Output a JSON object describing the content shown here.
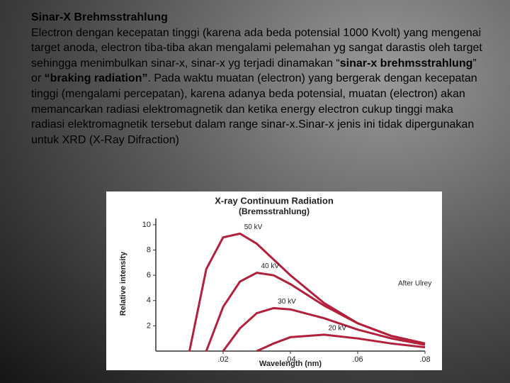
{
  "slide": {
    "title": "Sinar-X Brehmsstrahlung",
    "body": [
      {
        "text": "Electron dengan kecepatan tinggi (karena ada beda potensial 1000 Kvolt) yang mengenai target anoda, electron tiba-tiba akan mengalami pelemahan yg sangat darastis oleh target sehingga menimbulkan sinar-x, sinar-x yg terjadi dinamakan “",
        "bold": false
      },
      {
        "text": "sinar-x brehmsstrahlung",
        "bold": true
      },
      {
        "text": "” or ",
        "bold": false
      },
      {
        "text": "“braking radiation”",
        "bold": true
      },
      {
        "text": ". Pada waktu muatan (electron) yang bergerak dengan kecepatan tinggi (mengalami percepatan), karena adanya beda potensial, muatan (electron) akan memancarkan radiasi elektromagnetik dan ketika energy electron cukup tinggi maka radiasi elektromagnetik tersebut dalam range sinar-x.Sinar-x jenis ini tidak dipergunakan untuk XRD (X-Ray Difraction)",
        "bold": false
      }
    ]
  },
  "chart_data": {
    "type": "line",
    "title": "X-ray Continuum Radiation",
    "subtitle": "(Bremsstrahlung)",
    "x_label": "Wavelength (nm)",
    "y_label": "Relative intensity",
    "annotation": "After Ulrey",
    "xlim": [
      0,
      0.08
    ],
    "xticks": [
      {
        "value": 0.02,
        "label": ".02"
      },
      {
        "value": 0.04,
        "label": ".04"
      },
      {
        "value": 0.06,
        "label": ".06"
      },
      {
        "value": 0.08,
        "label": ".08"
      }
    ],
    "ylim": [
      0,
      10.5
    ],
    "yticks": [
      2,
      4,
      6,
      8,
      10
    ],
    "series": [
      {
        "name": "50 kV",
        "color": "#b3203c",
        "x": [
          0.01,
          0.015,
          0.02,
          0.025,
          0.03,
          0.04,
          0.05,
          0.06,
          0.07,
          0.08
        ],
        "values": [
          0,
          6.5,
          9,
          9.3,
          8.5,
          6,
          3.8,
          2.2,
          1.2,
          0.6
        ]
      },
      {
        "name": "40 kV",
        "color": "#b3203c",
        "x": [
          0.015,
          0.02,
          0.025,
          0.03,
          0.035,
          0.04,
          0.05,
          0.06,
          0.07,
          0.08
        ],
        "values": [
          0,
          3.5,
          5.5,
          6.2,
          6,
          5.3,
          3.6,
          2.2,
          1.2,
          0.6
        ]
      },
      {
        "name": "30 kV",
        "color": "#b3203c",
        "x": [
          0.02,
          0.025,
          0.03,
          0.035,
          0.04,
          0.05,
          0.06,
          0.07,
          0.08
        ],
        "values": [
          0,
          1.8,
          3,
          3.4,
          3.3,
          2.6,
          1.7,
          1,
          0.5
        ]
      },
      {
        "name": "20 kV",
        "color": "#b3203c",
        "x": [
          0.03,
          0.035,
          0.04,
          0.05,
          0.06,
          0.07,
          0.08
        ],
        "values": [
          0,
          0.6,
          1.1,
          1.3,
          1,
          0.6,
          0.3
        ]
      }
    ]
  }
}
